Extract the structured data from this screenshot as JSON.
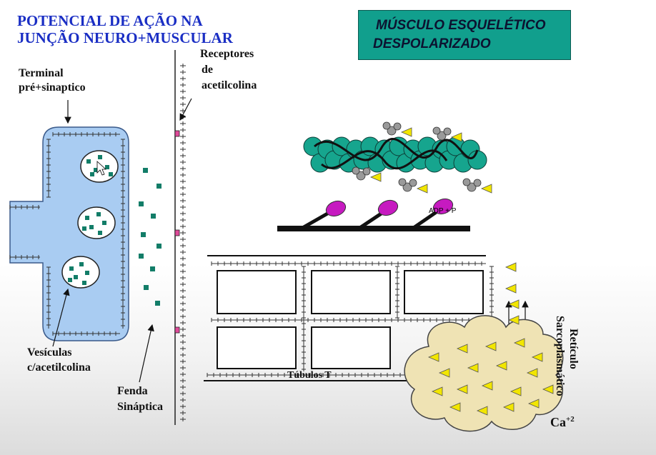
{
  "title": {
    "line1": "POTENCIAL DE AÇÃO NA",
    "line2": "JUNÇÃO NEURO+MUSCULAR"
  },
  "box": {
    "line1": "MÚSCULO ESQUELÉTICO",
    "line2": "DESPOLARIZADO"
  },
  "labels": {
    "terminal_line1": "Terminal",
    "terminal_line2": "pré+sinaptico",
    "receptors_line1": "Receptores",
    "receptors_line2": "de",
    "receptors_line3": "acetilcolina",
    "vesicles_line1": "Vesículas",
    "vesicles_line2": "c/acetilcolina",
    "cleft_line1": "Fenda",
    "cleft_line2": "Sináptica",
    "tubules": "Túbulos T",
    "adp": "ADP + P",
    "reticulum_line1": "Retículo",
    "reticulum_line2": "Sarcoplasmático",
    "calcium": "Ca",
    "calcium_charge": "+2"
  },
  "colors": {
    "title": "#1a2ec4",
    "box": "#119f8d",
    "terminal": "#a9ccf2",
    "vesicle_dot": "#127d68",
    "actin": "#16a58e",
    "myosin_head": "#c61ac0",
    "calcium": "#f2e600",
    "reticulum": "#efe3b4",
    "receptor": "#e04a9a"
  }
}
